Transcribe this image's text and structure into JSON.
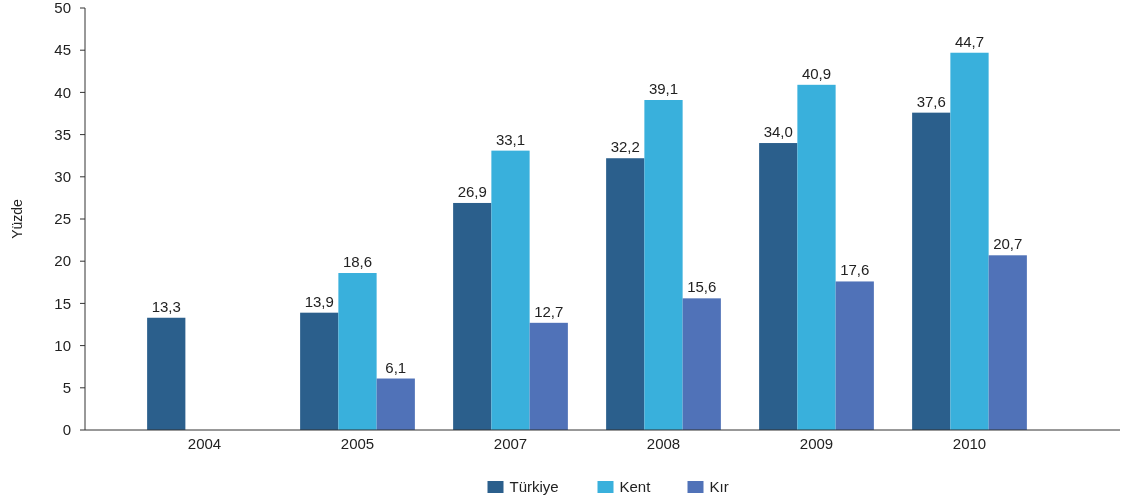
{
  "chart_data": {
    "type": "bar",
    "ylabel": "Yüzde",
    "categories": [
      "2004",
      "2005",
      "2007",
      "2008",
      "2009",
      "2010"
    ],
    "series": [
      {
        "name": "Türkiye",
        "color": "#2b5f8c",
        "values": [
          13.3,
          13.9,
          26.9,
          32.2,
          34.0,
          37.6
        ],
        "value_labels": [
          "13,3",
          "13,9",
          "26,9",
          "32,2",
          "34,0",
          "37,6"
        ]
      },
      {
        "name": "Kent",
        "color": "#39b0dc",
        "values": [
          null,
          18.6,
          33.1,
          39.1,
          40.9,
          44.7
        ],
        "value_labels": [
          null,
          "18,6",
          "33,1",
          "39,1",
          "40,9",
          "44,7"
        ]
      },
      {
        "name": "Kır",
        "color": "#5072b8",
        "values": [
          null,
          6.1,
          12.7,
          15.6,
          17.6,
          20.7
        ],
        "value_labels": [
          null,
          "6,1",
          "12,7",
          "15,6",
          "17,6",
          "20,7"
        ]
      }
    ],
    "ylim": [
      0,
      50
    ],
    "yticks": [
      0,
      5,
      10,
      15,
      20,
      25,
      30,
      35,
      40,
      45,
      50
    ],
    "grid": false,
    "legend": "bottom"
  }
}
